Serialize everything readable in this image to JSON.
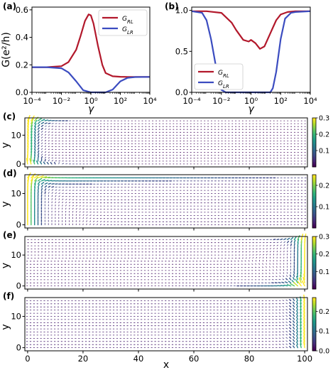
{
  "chart_data": [
    {
      "panel": "(a)",
      "type": "line",
      "xscale": "log",
      "xlim": [
        0.0001,
        10000
      ],
      "ylim": [
        0,
        0.62
      ],
      "xlabel": "γ",
      "ylabel": "G(e²/h)",
      "xticks": [
        "10⁻⁴",
        "10⁻²",
        "10⁰",
        "10²",
        "10⁴"
      ],
      "yticks": [
        "0.0",
        "0.2",
        "0.4",
        "0.6"
      ],
      "legend": "top-right",
      "series": [
        {
          "name": "G_RL",
          "label_main": "G",
          "label_sub": "RL",
          "color": "#b2182b",
          "x": [
            0.0001,
            0.001,
            0.01,
            0.03,
            0.1,
            0.2,
            0.4,
            0.7,
            1,
            1.5,
            3,
            6,
            10,
            30,
            100,
            300,
            1000,
            10000
          ],
          "y": [
            0.183,
            0.183,
            0.19,
            0.22,
            0.31,
            0.41,
            0.52,
            0.567,
            0.56,
            0.5,
            0.34,
            0.2,
            0.14,
            0.117,
            0.113,
            0.112,
            0.112,
            0.112
          ]
        },
        {
          "name": "G_LR",
          "label_main": "G",
          "label_sub": "LR",
          "color": "#3b4cc0",
          "x": [
            0.0001,
            0.001,
            0.01,
            0.03,
            0.1,
            0.3,
            1,
            3,
            10,
            30,
            100,
            300,
            1000,
            10000
          ],
          "y": [
            0.183,
            0.183,
            0.175,
            0.145,
            0.08,
            0.015,
            0.0,
            0.0,
            0.0,
            0.02,
            0.08,
            0.105,
            0.111,
            0.112
          ]
        }
      ]
    },
    {
      "panel": "(b)",
      "type": "line",
      "xscale": "log",
      "xlim": [
        0.0001,
        10000
      ],
      "ylim": [
        0,
        1.04
      ],
      "xlabel": "γ",
      "ylabel": "",
      "xticks": [
        "10⁻⁴",
        "10⁻²",
        "10⁰",
        "10²",
        "10⁴"
      ],
      "yticks": [
        "0.0",
        "0.5",
        "1.0"
      ],
      "legend": "bottom-left",
      "series": [
        {
          "name": "G_RL",
          "label_main": "G",
          "label_sub": "RL",
          "color": "#b2182b",
          "x": [
            0.0001,
            0.001,
            0.01,
            0.05,
            0.1,
            0.3,
            0.7,
            1,
            2,
            4,
            8,
            20,
            50,
            100,
            300,
            1000,
            10000
          ],
          "y": [
            0.99,
            0.99,
            0.97,
            0.85,
            0.76,
            0.64,
            0.62,
            0.64,
            0.6,
            0.53,
            0.56,
            0.72,
            0.88,
            0.95,
            0.98,
            0.99,
            0.99
          ]
        },
        {
          "name": "G_LR",
          "label_main": "G",
          "label_sub": "LR",
          "color": "#3b4cc0",
          "x": [
            0.0001,
            0.0005,
            0.001,
            0.002,
            0.005,
            0.008,
            0.01,
            0.02,
            0.05,
            10,
            20,
            30,
            50,
            100,
            200,
            500,
            1000,
            10000
          ],
          "y": [
            0.99,
            0.97,
            0.88,
            0.65,
            0.25,
            0.08,
            0.03,
            0.0,
            0.0,
            0.0,
            0.0,
            0.05,
            0.25,
            0.65,
            0.9,
            0.97,
            0.98,
            0.99
          ]
        }
      ]
    },
    {
      "panel": "(c)",
      "type": "heatmap",
      "subtype": "vector-field",
      "xlim": [
        -1,
        101
      ],
      "ylim": [
        -1,
        16
      ],
      "ylabel": "y",
      "yticks": [
        "0",
        "10"
      ],
      "colorbar": {
        "min": 0,
        "max": 0.3,
        "ticks": [
          "0.1",
          "0.2",
          "0.3"
        ]
      },
      "flow": "left-edge"
    },
    {
      "panel": "(d)",
      "type": "heatmap",
      "subtype": "vector-field",
      "xlim": [
        -1,
        101
      ],
      "ylim": [
        -1,
        16
      ],
      "ylabel": "y",
      "yticks": [
        "0",
        "10"
      ],
      "colorbar": {
        "min": 0,
        "max": 0.25,
        "ticks": [
          "0.1",
          "0.2"
        ]
      },
      "flow": "left-top"
    },
    {
      "panel": "(e)",
      "type": "heatmap",
      "subtype": "vector-field",
      "xlim": [
        -1,
        101
      ],
      "ylim": [
        -1,
        16
      ],
      "ylabel": "y",
      "yticks": [
        "0",
        "10"
      ],
      "colorbar": {
        "min": 0,
        "max": 0.3,
        "ticks": [
          "0.1",
          "0.2",
          "0.3"
        ]
      },
      "flow": "right-edge"
    },
    {
      "panel": "(f)",
      "type": "heatmap",
      "subtype": "vector-field",
      "xlim": [
        -1,
        101
      ],
      "ylim": [
        -1,
        16
      ],
      "xlabel": "x",
      "ylabel": "y",
      "xticks": [
        "0",
        "20",
        "40",
        "60",
        "80",
        "100"
      ],
      "yticks": [
        "0",
        "10"
      ],
      "colorbar": {
        "min": 0,
        "max": 0.27,
        "ticks": [
          "0.0",
          "0.1",
          "0.2"
        ]
      },
      "flow": "right-narrow"
    }
  ]
}
